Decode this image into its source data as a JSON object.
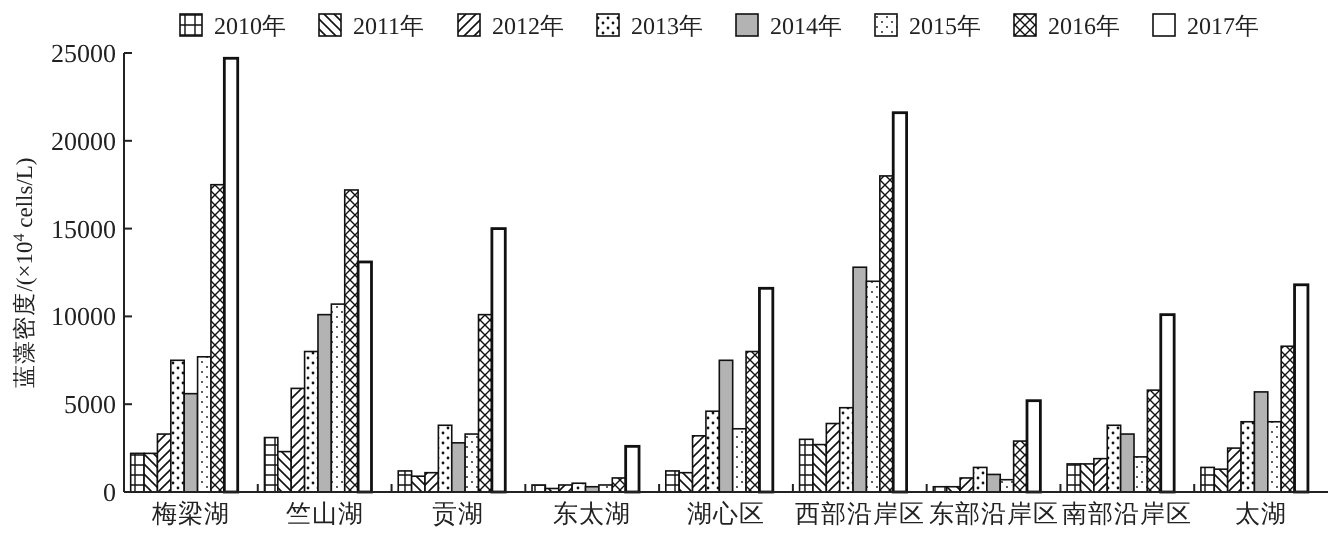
{
  "chart_data": {
    "type": "bar",
    "ylabel": "蓝藻密度/(×10$^{4}$ cells/L)",
    "categories": [
      "梅梁湖",
      "竺山湖",
      "贡湖",
      "东太湖",
      "湖心区",
      "西部沿岸区",
      "东部沿岸区",
      "南部沿岸区",
      "太湖"
    ],
    "series": [
      {
        "name": "2010年",
        "color": "#111111",
        "values": [
          2200,
          3100,
          1200,
          400,
          1200,
          3000,
          300,
          1600,
          1400
        ]
      },
      {
        "name": "2011年",
        "color": "#111111",
        "values": [
          2200,
          2300,
          900,
          200,
          1100,
          2700,
          300,
          1600,
          1300
        ]
      },
      {
        "name": "2012年",
        "color": "#111111",
        "values": [
          3300,
          5900,
          1100,
          400,
          3200,
          3900,
          800,
          1900,
          2500
        ]
      },
      {
        "name": "2013年",
        "color": "#111111",
        "values": [
          7500,
          8000,
          3800,
          500,
          4600,
          4800,
          1400,
          3800,
          4000
        ]
      },
      {
        "name": "2014年",
        "color": "#b3b3b3",
        "values": [
          5600,
          10100,
          2800,
          300,
          7500,
          12800,
          1000,
          3300,
          5700
        ]
      },
      {
        "name": "2015年",
        "color": "#111111",
        "values": [
          7700,
          10700,
          3300,
          400,
          3600,
          12000,
          700,
          2000,
          4000
        ]
      },
      {
        "name": "2016年",
        "color": "#111111",
        "values": [
          17500,
          17200,
          10100,
          800,
          8000,
          18000,
          2900,
          5800,
          8300
        ]
      },
      {
        "name": "2017年",
        "color": "#ffffff",
        "values": [
          24700,
          13100,
          15000,
          2600,
          11600,
          21600,
          5200,
          10100,
          11800
        ]
      }
    ],
    "ylim": [
      0,
      25000
    ],
    "yticks": [
      0,
      5000,
      10000,
      15000,
      20000,
      25000
    ],
    "grid": false,
    "legend": "top"
  }
}
